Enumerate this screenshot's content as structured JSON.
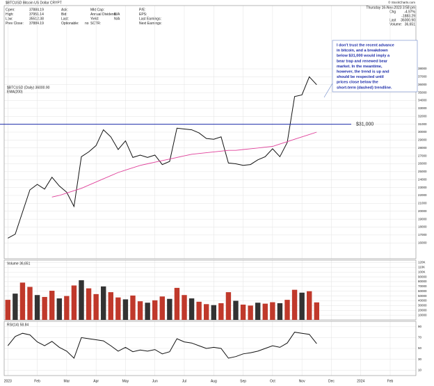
{
  "header": {
    "title": "$BTCUSD Bitcoin US Dollar CRYPT",
    "columns": [
      [
        {
          "label": "Open:",
          "value": "37884.19"
        },
        {
          "label": "High:",
          "value": "37951.14"
        },
        {
          "label": "Low:",
          "value": "35512.38"
        },
        {
          "label": "Prev Close:",
          "value": "37884.19"
        }
      ],
      [
        {
          "label": "Ask:"
        },
        {
          "label": "Bid:"
        },
        {
          "label": "Last:"
        },
        {
          "label": "Optionable:",
          "value": "no"
        }
      ],
      [
        {
          "label": "Mkt Cap:"
        },
        {
          "label": "Annual Dividend:",
          "value": "N/A"
        },
        {
          "label": "Yield:",
          "value": "N/A"
        },
        {
          "label": "SCTR:"
        }
      ],
      [
        {
          "label": "P/E:"
        },
        {
          "label": "EPS:"
        },
        {
          "label": "Last Earnings:"
        },
        {
          "label": "Next Earnings:"
        }
      ]
    ],
    "credit": "© StockCharts.com",
    "date": "Thursday 16-Nov-2023 3:58 pm",
    "quote": [
      {
        "label": "Chg",
        "value": "-4.97%"
      },
      {
        "label": "",
        "value": "-1883.29"
      },
      {
        "label": "Last",
        "value": "36000.90"
      },
      {
        "label": "Volume:",
        "value": "36,651"
      }
    ]
  },
  "chart_data": [
    {
      "type": "line",
      "categories": [
        "2023",
        null,
        null,
        null,
        "Feb",
        null,
        null,
        null,
        "Mar",
        null,
        null,
        null,
        "Apr",
        null,
        null,
        null,
        "May",
        null,
        null,
        null,
        "Jun",
        null,
        null,
        null,
        "Jul",
        null,
        null,
        null,
        "Aug",
        null,
        null,
        null,
        "Sep",
        null,
        null,
        null,
        "Oct",
        null,
        null,
        null,
        "Nov",
        null,
        null,
        null,
        "Dec",
        null,
        null,
        null,
        "2024",
        null,
        null,
        null,
        "Feb",
        null,
        null,
        null
      ],
      "series": [
        {
          "name": "$BTCUSD (Daily) 36000.90",
          "color": "#111111",
          "values": [
            16600,
            17100,
            19900,
            22700,
            23400,
            22800,
            24300,
            23200,
            22400,
            20600,
            26900,
            27500,
            28300,
            30300,
            29400,
            27800,
            28900,
            26800,
            27100,
            26800,
            27100,
            25900,
            26300,
            30500,
            30400,
            30300,
            29900,
            29200,
            29100,
            29400,
            26100,
            26000,
            25800,
            25900,
            26500,
            26900,
            27900,
            26900,
            28700,
            34500,
            34700,
            37000,
            36000,
            null,
            null,
            null,
            null,
            null,
            null,
            null,
            null,
            null,
            null,
            null,
            null,
            null
          ]
        },
        {
          "name": "EMA(200)",
          "color": "#e0409a",
          "values": [
            null,
            null,
            null,
            null,
            null,
            null,
            21800,
            22000,
            22300,
            22600,
            22900,
            23300,
            23700,
            24100,
            24500,
            24900,
            25200,
            25500,
            25800,
            26000,
            26200,
            26400,
            26600,
            26800,
            27000,
            27200,
            27300,
            27400,
            27500,
            27600,
            27700,
            27700,
            27800,
            27900,
            28000,
            28100,
            28200,
            28500,
            28800,
            29100,
            29400,
            29700,
            30000,
            null,
            null,
            null,
            null,
            null,
            null,
            null,
            null,
            null,
            null,
            null,
            null,
            null
          ]
        }
      ],
      "ylim": [
        14000,
        46000
      ],
      "yticks": [
        16000,
        17000,
        18000,
        19000,
        20000,
        21000,
        22000,
        23000,
        24000,
        25000,
        26000,
        27000,
        28000,
        29000,
        30000,
        31000,
        32000,
        33000,
        34000,
        35000,
        36000,
        37000,
        38000
      ],
      "hline": {
        "value": 31000,
        "label": "$31,000",
        "color": "#1a2aa8"
      },
      "annotation": [
        "I don't trust the recent advance",
        "in bitcoin, and a breakdown",
        "below $31,000 would imply a",
        "bear trap and renewed bear",
        "market. In the meantime,",
        "however, the trend is up and",
        "should be respected until",
        "prices close below the",
        "short-term (dashed) trendline."
      ],
      "grid": true
    },
    {
      "type": "bar",
      "series": [
        {
          "name": "Volume 36,651",
          "color": "#c0392b",
          "values": [
            42000,
            55000,
            78000,
            69000,
            52000,
            48000,
            61000,
            45000,
            50000,
            72000,
            83000,
            66000,
            54000,
            70000,
            58000,
            47000,
            43000,
            51000,
            39000,
            36000,
            41000,
            49000,
            44000,
            67000,
            52000,
            45000,
            38000,
            33000,
            31000,
            35000,
            58000,
            40000,
            32000,
            30000,
            36000,
            34000,
            37000,
            35000,
            42000,
            63000,
            57000,
            60000,
            36651,
            null,
            null,
            null,
            null,
            null,
            null,
            null,
            null,
            null,
            null,
            null,
            null,
            null
          ]
        }
      ],
      "ylim": [
        0,
        125000
      ],
      "yticks": [
        10000,
        20000,
        30000,
        40000,
        50000,
        60000,
        70000,
        80000,
        90000,
        {
          "value": 100000,
          "label": "100K"
        },
        {
          "value": 110000,
          "label": "110K"
        },
        {
          "value": 120000,
          "label": "120K"
        }
      ],
      "grid": true
    },
    {
      "type": "line",
      "series": [
        {
          "name": "RSI(14) 58.84",
          "color": "#111111",
          "values": [
            55,
            72,
            78,
            75,
            62,
            55,
            63,
            52,
            45,
            32,
            70,
            68,
            66,
            64,
            55,
            45,
            52,
            44,
            47,
            45,
            48,
            40,
            44,
            68,
            62,
            60,
            55,
            50,
            52,
            50,
            32,
            35,
            40,
            42,
            45,
            50,
            55,
            52,
            60,
            80,
            78,
            76,
            58.84,
            null,
            null,
            null,
            null,
            null,
            null,
            null,
            null,
            null,
            null,
            null,
            null,
            null
          ]
        }
      ],
      "ylim": [
        0,
        100
      ],
      "yticks": [
        10,
        30,
        50,
        70,
        90
      ],
      "grid": true
    }
  ]
}
